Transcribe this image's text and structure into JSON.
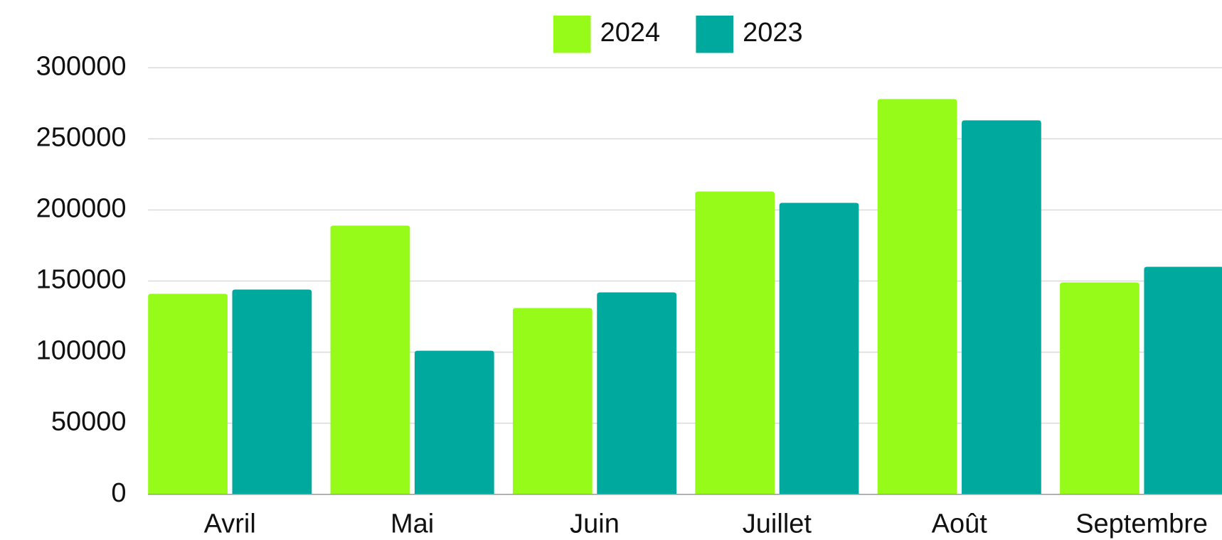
{
  "chart_data": {
    "type": "bar",
    "categories": [
      "Avril",
      "Mai",
      "Juin",
      "Juillet",
      "Août",
      "Septembre"
    ],
    "series": [
      {
        "name": "2024",
        "color": "#97fb1a",
        "values": [
          141000,
          189000,
          131000,
          213000,
          278000,
          149000
        ]
      },
      {
        "name": "2023",
        "color": "#00a99d",
        "values": [
          144000,
          101000,
          142000,
          205000,
          263000,
          160000
        ]
      }
    ],
    "ylim": [
      0,
      300000
    ],
    "yticks": [
      0,
      50000,
      100000,
      150000,
      200000,
      250000,
      300000
    ],
    "grid": true,
    "legend": "top"
  }
}
